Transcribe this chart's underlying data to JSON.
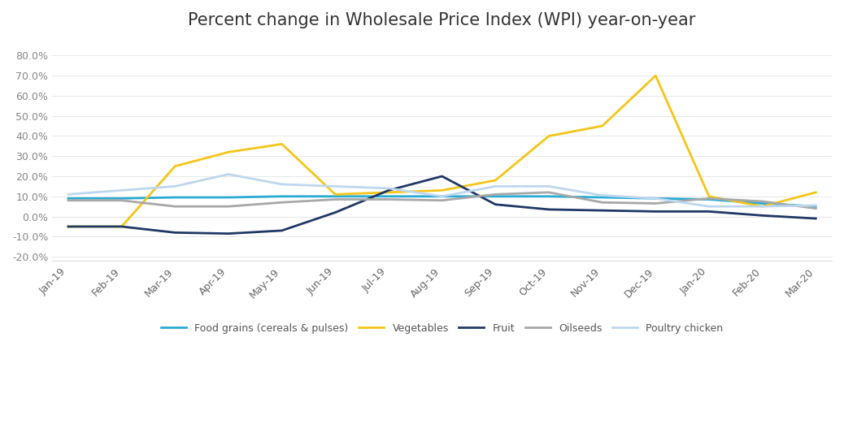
{
  "title": "Percent change in Wholesale Price Index (WPI) year-on-year",
  "x_labels": [
    "Jan-19",
    "Feb-19",
    "Mar-19",
    "Apr-19",
    "May-19",
    "Jun-19",
    "Jul-19",
    "Aug-19",
    "Sep-19",
    "Oct-19",
    "Nov-19",
    "Dec-19",
    "Jan-20",
    "Feb-20",
    "Mar-20"
  ],
  "series": {
    "Food grains (cereals & pulses)": {
      "values": [
        9.0,
        9.0,
        9.5,
        9.5,
        10.0,
        10.0,
        10.0,
        10.0,
        10.0,
        10.0,
        9.5,
        9.0,
        8.5,
        6.5,
        5.0
      ],
      "color": "#29ABD4",
      "linewidth": 2.0
    },
    "Vegetables": {
      "values": [
        -5.0,
        -5.0,
        25.0,
        32.0,
        36.0,
        11.0,
        12.0,
        13.0,
        18.0,
        40.0,
        45.0,
        70.0,
        10.0,
        5.0,
        12.0
      ],
      "color": "#F5C518",
      "linewidth": 2.0
    },
    "Fruit": {
      "values": [
        -5.0,
        -5.0,
        -8.0,
        -8.5,
        -7.0,
        2.0,
        13.0,
        20.0,
        6.0,
        3.5,
        3.0,
        2.5,
        2.5,
        0.5,
        -1.0
      ],
      "color": "#1F3864",
      "linewidth": 2.0
    },
    "Oilseeds": {
      "values": [
        8.0,
        8.0,
        5.0,
        5.0,
        7.0,
        8.5,
        8.5,
        8.0,
        11.0,
        12.0,
        7.0,
        6.5,
        9.0,
        7.5,
        4.0
      ],
      "color": "#A8A8A8",
      "linewidth": 2.0
    },
    "Poultry chicken": {
      "values": [
        11.0,
        13.0,
        15.0,
        21.0,
        16.0,
        15.0,
        14.0,
        10.0,
        15.0,
        15.0,
        10.5,
        9.0,
        5.0,
        5.0,
        5.5
      ],
      "color": "#BDD7EE",
      "linewidth": 2.0
    }
  },
  "ylim": [
    -22.0,
    85.0
  ],
  "yticks": [
    -20.0,
    -10.0,
    0.0,
    10.0,
    20.0,
    30.0,
    40.0,
    50.0,
    60.0,
    70.0,
    80.0
  ],
  "background_color": "#ffffff",
  "legend_order": [
    "Food grains (cereals & pulses)",
    "Vegetables",
    "Fruit",
    "Oilseeds",
    "Poultry chicken"
  ],
  "title_fontsize": 15,
  "tick_fontsize": 9,
  "legend_fontsize": 9
}
